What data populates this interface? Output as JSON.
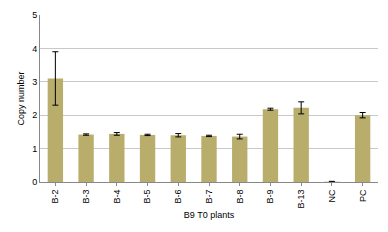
{
  "chart_data": {
    "type": "bar",
    "x_label": "B9 T0 plants",
    "y_label": "Copy number",
    "categories": [
      "B-2",
      "B-3",
      "B-4",
      "B-5",
      "B-6",
      "B-7",
      "B-8",
      "B-9",
      "B-13",
      "NC",
      "PC"
    ],
    "values": [
      3.1,
      1.42,
      1.44,
      1.41,
      1.4,
      1.38,
      1.36,
      2.18,
      2.22,
      0.01,
      2.0
    ],
    "errors": [
      0.8,
      0.02,
      0.04,
      0.02,
      0.05,
      0.02,
      0.07,
      0.03,
      0.18,
      0.01,
      0.08
    ],
    "color": "#b8ad6b",
    "ylim": [
      0,
      5
    ],
    "yticks": [
      0,
      1,
      2,
      3,
      4,
      5
    ],
    "grid": true
  }
}
